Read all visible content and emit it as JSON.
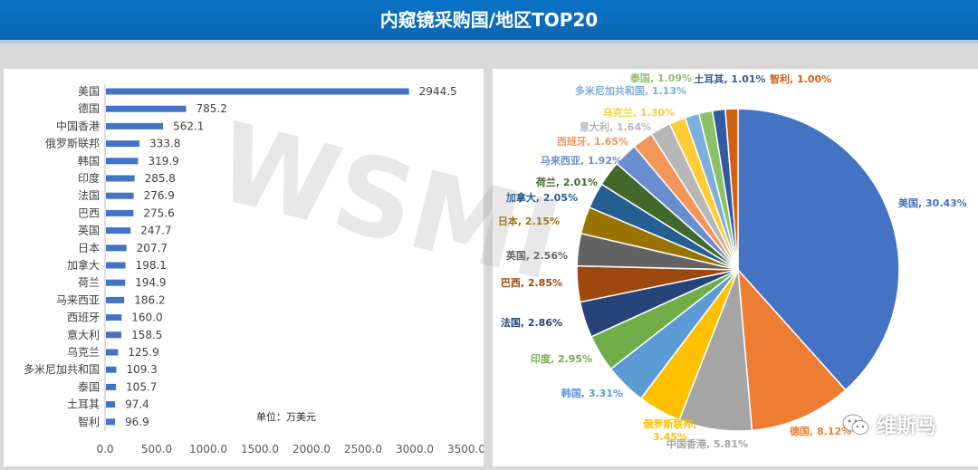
{
  "header": {
    "title": "内窥镜采购国/地区TOP20"
  },
  "watermark": {
    "text": "WSMI"
  },
  "logo": {
    "text": "维斯马"
  },
  "chart_data": [
    {
      "type": "bar",
      "orientation": "horizontal",
      "categories": [
        "美国",
        "德国",
        "中国香港",
        "俄罗斯联邦",
        "韩国",
        "印度",
        "法国",
        "巴西",
        "英国",
        "日本",
        "加拿大",
        "荷兰",
        "马来西亚",
        "西班牙",
        "意大利",
        "乌克兰",
        "多米尼加共和国",
        "泰国",
        "土耳其",
        "智利"
      ],
      "values": [
        2944.5,
        785.2,
        562.1,
        333.8,
        319.9,
        285.8,
        276.9,
        275.6,
        247.7,
        207.7,
        198.1,
        194.9,
        186.2,
        160.0,
        158.5,
        125.9,
        109.3,
        105.7,
        97.4,
        96.9
      ],
      "value_labels": [
        "2944.5",
        "785.2",
        "562.1",
        "333.8",
        "319.9",
        "285.8",
        "276.9",
        "275.6",
        "247.7",
        "207.7",
        "198.1",
        "194.9",
        "186.2",
        "160.0",
        "158.5",
        "125.9",
        "109.3",
        "105.7",
        "97.4",
        "96.9"
      ],
      "xlim": [
        0,
        3500
      ],
      "xticks": [
        "0.0",
        "500.0",
        "1000.0",
        "1500.0",
        "2000.0",
        "2500.0",
        "3000.0",
        "3500.0"
      ],
      "annotation": "单位：万美元",
      "bar_color": "#4472c4",
      "grid": false
    },
    {
      "type": "pie",
      "slices": [
        {
          "label": "美国",
          "pct": "30.43%",
          "value": 30.43,
          "color": "#4472c4"
        },
        {
          "label": "德国",
          "pct": "8.12%",
          "value": 8.12,
          "color": "#ed7d31"
        },
        {
          "label": "中国香港",
          "pct": "5.81%",
          "value": 5.81,
          "color": "#a5a5a5"
        },
        {
          "label": "俄罗斯联邦",
          "pct": "3.45%",
          "value": 3.45,
          "color": "#ffc000"
        },
        {
          "label": "韩国",
          "pct": "3.31%",
          "value": 3.31,
          "color": "#5b9bd5"
        },
        {
          "label": "印度",
          "pct": "2.95%",
          "value": 2.95,
          "color": "#70ad47"
        },
        {
          "label": "法国",
          "pct": "2.86%",
          "value": 2.86,
          "color": "#264478"
        },
        {
          "label": "巴西",
          "pct": "2.85%",
          "value": 2.85,
          "color": "#9e480e"
        },
        {
          "label": "英国",
          "pct": "2.56%",
          "value": 2.56,
          "color": "#636363"
        },
        {
          "label": "日本",
          "pct": "2.15%",
          "value": 2.15,
          "color": "#997300"
        },
        {
          "label": "加拿大",
          "pct": "2.05%",
          "value": 2.05,
          "color": "#255e91"
        },
        {
          "label": "荷兰",
          "pct": "2.01%",
          "value": 2.01,
          "color": "#43682b"
        },
        {
          "label": "马来西亚",
          "pct": "1.92%",
          "value": 1.92,
          "color": "#698ed0"
        },
        {
          "label": "西班牙",
          "pct": "1.65%",
          "value": 1.65,
          "color": "#f1975a"
        },
        {
          "label": "意大利",
          "pct": "1.64%",
          "value": 1.64,
          "color": "#b7b7b7"
        },
        {
          "label": "乌克兰",
          "pct": "1.30%",
          "value": 1.3,
          "color": "#ffcd33"
        },
        {
          "label": "多米尼加共和国",
          "pct": "1.13%",
          "value": 1.13,
          "color": "#7cafdd"
        },
        {
          "label": "泰国",
          "pct": "1.09%",
          "value": 1.09,
          "color": "#8cc168"
        },
        {
          "label": "土耳其",
          "pct": "1.01%",
          "value": 1.01,
          "color": "#335aa1"
        },
        {
          "label": "智利",
          "pct": "1.00%",
          "value": 1.0,
          "color": "#d26012"
        }
      ]
    }
  ]
}
